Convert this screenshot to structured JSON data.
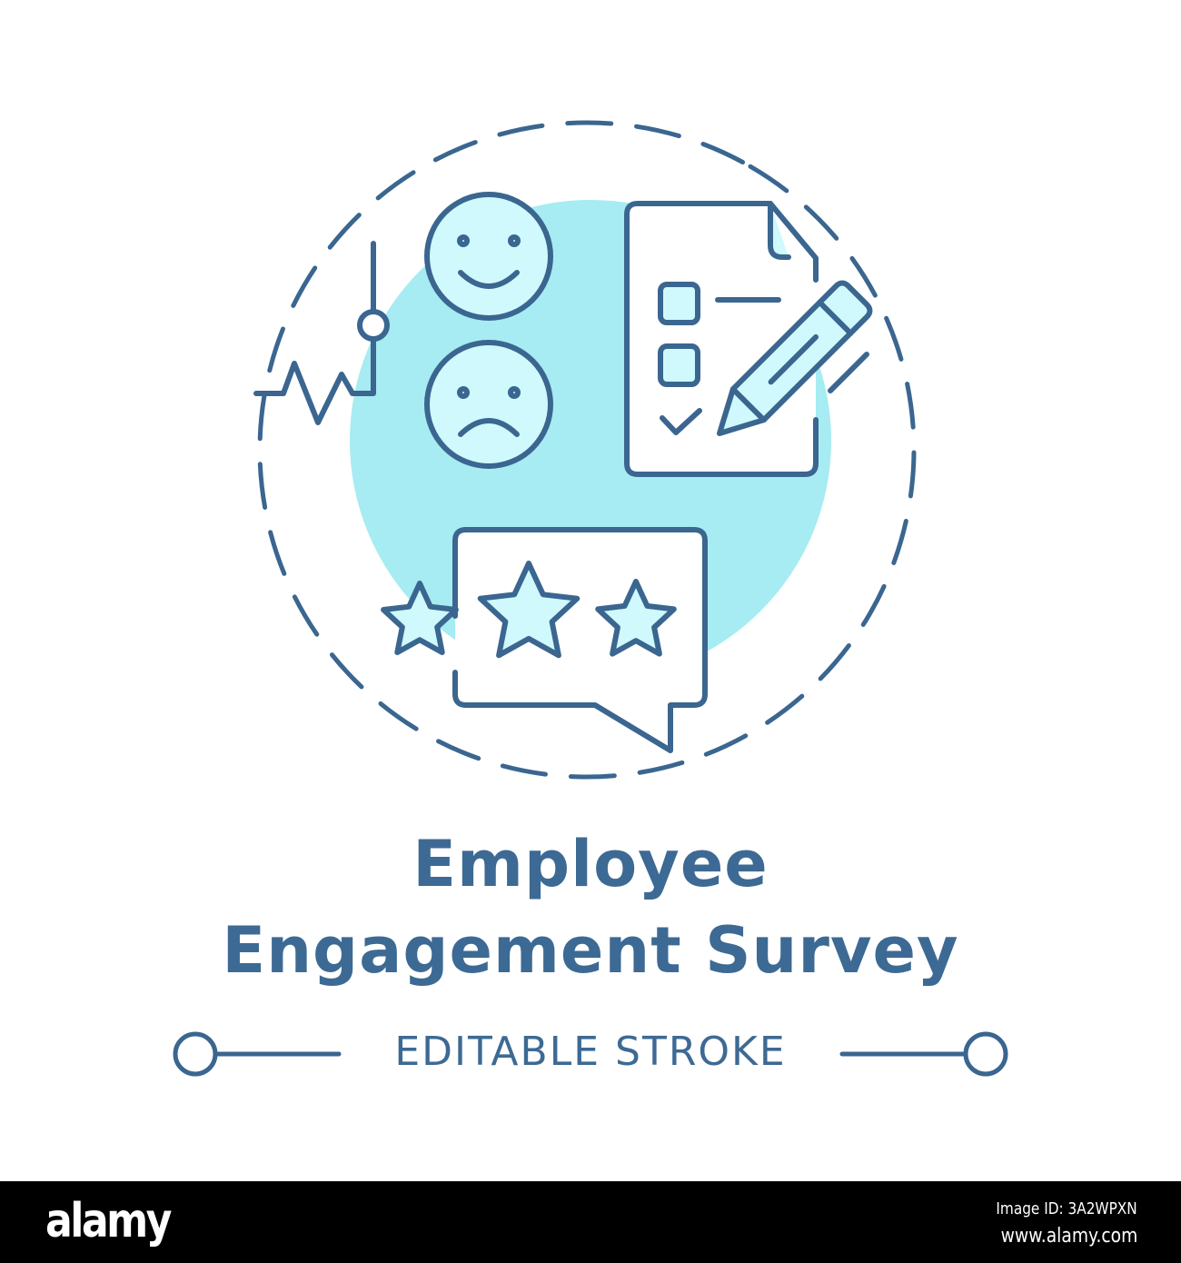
{
  "title_line1": "Employee",
  "title_line2": "Engagement Survey",
  "subtitle": "EDITABLE STROKE",
  "colors": {
    "stroke": "#3a6690",
    "backdrop": "#a6ecf2",
    "fill": "#cff9fc",
    "footer": "#000000"
  },
  "icons": [
    "happy-face-icon",
    "sad-face-icon",
    "pulse-line-icon",
    "survey-document-icon",
    "pencil-icon",
    "rating-speech-bubble-icon",
    "star-icon"
  ],
  "rating": {
    "stars_shown": 3
  },
  "footer": {
    "logo": "alamy",
    "image_id": "Image ID: 3A2WPXN",
    "site": "www.alamy.com"
  }
}
